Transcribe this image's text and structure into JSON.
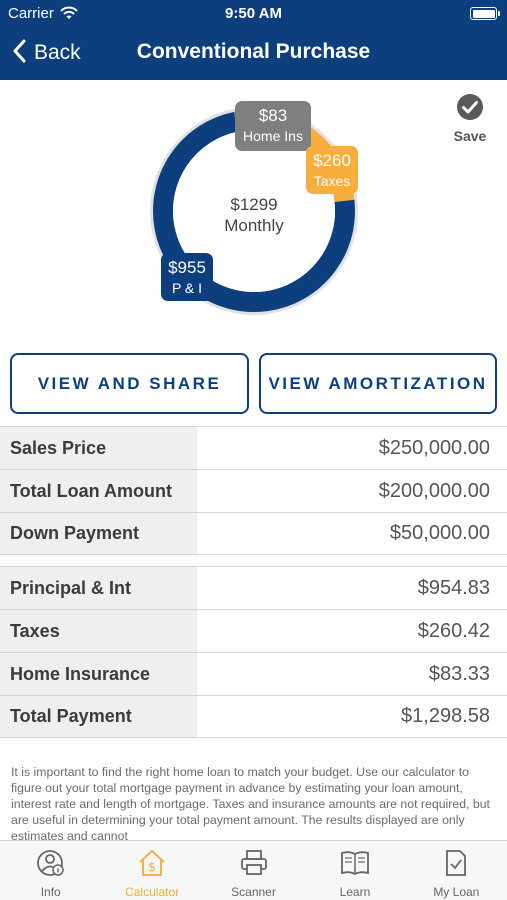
{
  "status_bar": {
    "carrier": "Carrier",
    "time": "9:50 AM"
  },
  "nav": {
    "back_label": "Back",
    "title": "Conventional Purchase"
  },
  "summary": {
    "total_amount": "$1299",
    "total_label": "Monthly",
    "save_label": "Save",
    "breakdown": [
      {
        "amount": "$83",
        "label": "Home Ins",
        "value": 83,
        "color": "#7f7f7f"
      },
      {
        "amount": "$260",
        "label": "Taxes",
        "value": 260,
        "color": "#f7ae3f"
      },
      {
        "amount": "$955",
        "label": "P & I",
        "value": 955,
        "color": "#0d3f7e"
      }
    ]
  },
  "buttons": {
    "view_share": "VIEW AND SHARE",
    "view_amortization": "VIEW AMORTIZATION"
  },
  "loan_rows": [
    {
      "label": "Sales Price",
      "value": "$250,000.00"
    },
    {
      "label": "Total Loan Amount",
      "value": "$200,000.00"
    },
    {
      "label": "Down Payment",
      "value": "$50,000.00"
    }
  ],
  "payment_rows": [
    {
      "label": "Principal & Int",
      "value": "$954.83"
    },
    {
      "label": "Taxes",
      "value": "$260.42"
    },
    {
      "label": "Home Insurance",
      "value": "$83.33"
    },
    {
      "label": "Total Payment",
      "value": "$1,298.58"
    }
  ],
  "disclaimer": "It is important to find the right home loan to match your budget. Use our calculator to figure out your total mortgage payment in advance by estimating your loan amount, interest rate and length of mortgage. Taxes and insurance amounts are not required, but are useful in determining your total payment amount.  The results displayed are only estimates and cannot",
  "tabs": [
    {
      "label": "Info",
      "icon": "person-info-icon"
    },
    {
      "label": "Calculator",
      "icon": "house-dollar-icon",
      "active": true
    },
    {
      "label": "Scanner",
      "icon": "printer-icon"
    },
    {
      "label": "Learn",
      "icon": "open-book-icon"
    },
    {
      "label": "My Loan",
      "icon": "document-check-icon"
    }
  ],
  "colors": {
    "brand": "#0d3f7e",
    "accent": "#f7ae3f",
    "insurance": "#7f7f7f"
  }
}
